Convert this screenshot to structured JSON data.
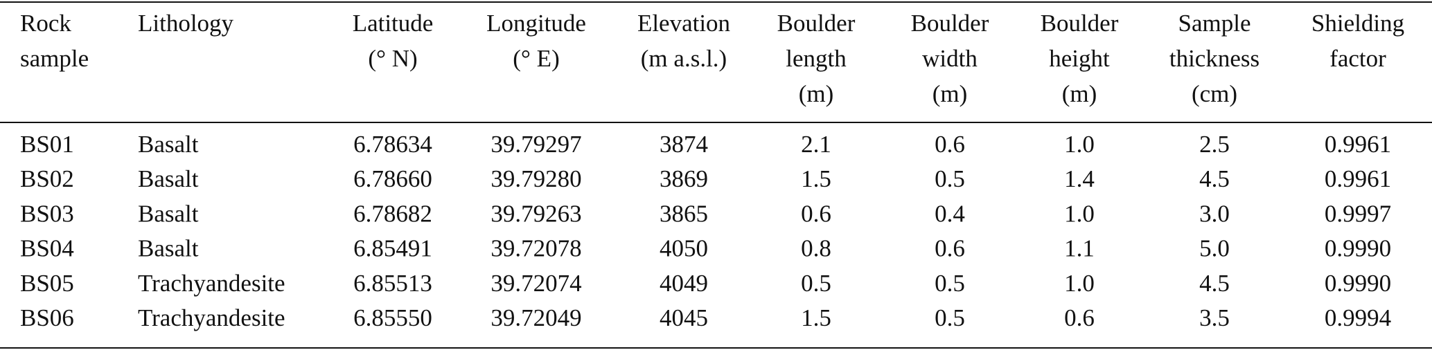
{
  "table": {
    "header": [
      [
        "Rock",
        "sample"
      ],
      [
        "Lithology"
      ],
      [
        "Latitude",
        "(° N)"
      ],
      [
        "Longitude",
        "(° E)"
      ],
      [
        "Elevation",
        "(m a.s.l.)"
      ],
      [
        "Boulder",
        "length",
        "(m)"
      ],
      [
        "Boulder",
        "width",
        "(m)"
      ],
      [
        "Boulder",
        "height",
        "(m)"
      ],
      [
        "Sample",
        "thickness",
        "(cm)"
      ],
      [
        "Shielding",
        "factor"
      ]
    ],
    "rows": [
      [
        "BS01",
        "Basalt",
        "6.78634",
        "39.79297",
        "3874",
        "2.1",
        "0.6",
        "1.0",
        "2.5",
        "0.9961"
      ],
      [
        "BS02",
        "Basalt",
        "6.78660",
        "39.79280",
        "3869",
        "1.5",
        "0.5",
        "1.4",
        "4.5",
        "0.9961"
      ],
      [
        "BS03",
        "Basalt",
        "6.78682",
        "39.79263",
        "3865",
        "0.6",
        "0.4",
        "1.0",
        "3.0",
        "0.9997"
      ],
      [
        "BS04",
        "Basalt",
        "6.85491",
        "39.72078",
        "4050",
        "0.8",
        "0.6",
        "1.1",
        "5.0",
        "0.9990"
      ],
      [
        "BS05",
        "Trachyandesite",
        "6.85513",
        "39.72074",
        "4049",
        "0.5",
        "0.5",
        "1.0",
        "4.5",
        "0.9990"
      ],
      [
        "BS06",
        "Trachyandesite",
        "6.85550",
        "39.72049",
        "4045",
        "1.5",
        "0.5",
        "0.6",
        "3.5",
        "0.9994"
      ]
    ]
  }
}
